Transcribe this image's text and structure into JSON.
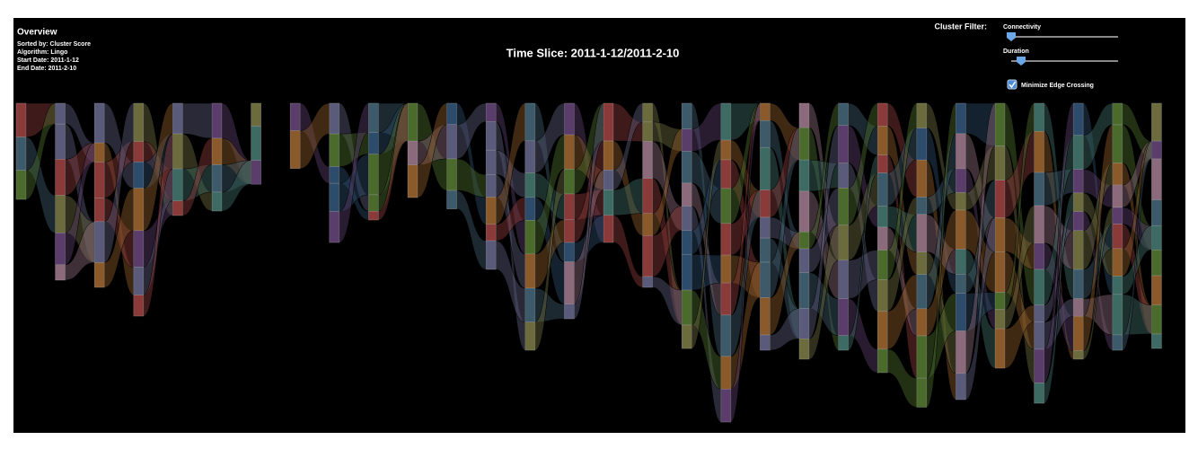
{
  "header": {
    "title": "Overview",
    "sorted_by": "Sorted by: Cluster Score",
    "algorithm": "Algorithm: Lingo",
    "start_date": "Start Date: 2011-1-12",
    "end_date": "End Date: 2011-2-10"
  },
  "time_slice": "Time Slice: 2011-1-12/2011-2-10",
  "filter": {
    "label": "Cluster Filter:",
    "sliders": [
      "Connectivity",
      "Duration"
    ],
    "checkbox": "Minimize Edge Crossing"
  }
}
